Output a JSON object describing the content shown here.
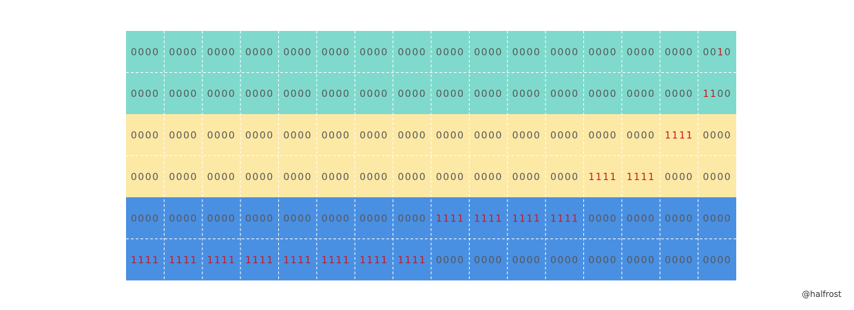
{
  "grid": {
    "rows": [
      [
        "0000",
        "0000",
        "0000",
        "0000",
        "0000",
        "0000",
        "0000",
        "0000",
        "0000",
        "0000",
        "0000",
        "0000",
        "0000",
        "0000",
        "0000",
        "0010"
      ],
      [
        "0000",
        "0000",
        "0000",
        "0000",
        "0000",
        "0000",
        "0000",
        "0000",
        "0000",
        "0000",
        "0000",
        "0000",
        "0000",
        "0000",
        "0000",
        "1100"
      ],
      [
        "0000",
        "0000",
        "0000",
        "0000",
        "0000",
        "0000",
        "0000",
        "0000",
        "0000",
        "0000",
        "0000",
        "0000",
        "0000",
        "0000",
        "1111",
        "0000"
      ],
      [
        "0000",
        "0000",
        "0000",
        "0000",
        "0000",
        "0000",
        "0000",
        "0000",
        "0000",
        "0000",
        "0000",
        "0000",
        "1111",
        "1111",
        "0000",
        "0000"
      ],
      [
        "0000",
        "0000",
        "0000",
        "0000",
        "0000",
        "0000",
        "0000",
        "0000",
        "1111",
        "1111",
        "1111",
        "1111",
        "0000",
        "0000",
        "0000",
        "0000"
      ],
      [
        "1111",
        "1111",
        "1111",
        "1111",
        "1111",
        "1111",
        "1111",
        "1111",
        "0000",
        "0000",
        "0000",
        "0000",
        "0000",
        "0000",
        "0000",
        "0000"
      ]
    ]
  },
  "watermark": "@halfrost"
}
